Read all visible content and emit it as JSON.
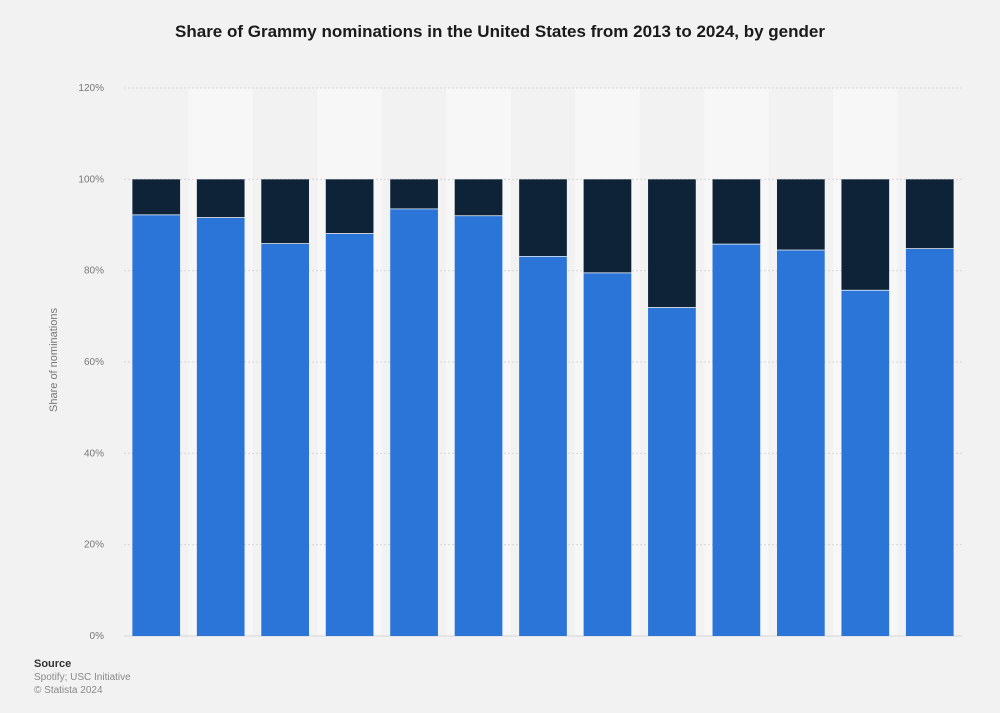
{
  "chart_data": {
    "type": "bar",
    "stacked": true,
    "title": "Share of Grammy nominations in the United States from 2013 to 2024, by gender",
    "ylabel": "Share of nominations",
    "ylim": [
      0,
      120
    ],
    "yticks": [
      "0%",
      "20%",
      "40%",
      "60%",
      "80%",
      "100%",
      "120%"
    ],
    "categories": [
      "",
      "",
      "",
      "",
      "",
      "",
      "",
      "",
      "",
      "",
      "",
      "",
      ""
    ],
    "series": [
      {
        "color": "#2b74d8",
        "values": [
          92.3,
          91.7,
          86.0,
          88.2,
          93.6,
          92.1,
          83.2,
          79.6,
          72.0,
          85.9,
          84.6,
          75.8,
          84.9
        ]
      },
      {
        "color": "#0e2238",
        "values": [
          7.7,
          8.3,
          14.0,
          11.8,
          6.4,
          7.9,
          16.8,
          20.4,
          28.0,
          14.1,
          15.4,
          24.2,
          15.1
        ]
      }
    ],
    "grid": true,
    "legend": "none"
  },
  "source": {
    "heading": "Source",
    "line1": "Spotify; USC Initiative",
    "line2": "© Statista 2024"
  }
}
